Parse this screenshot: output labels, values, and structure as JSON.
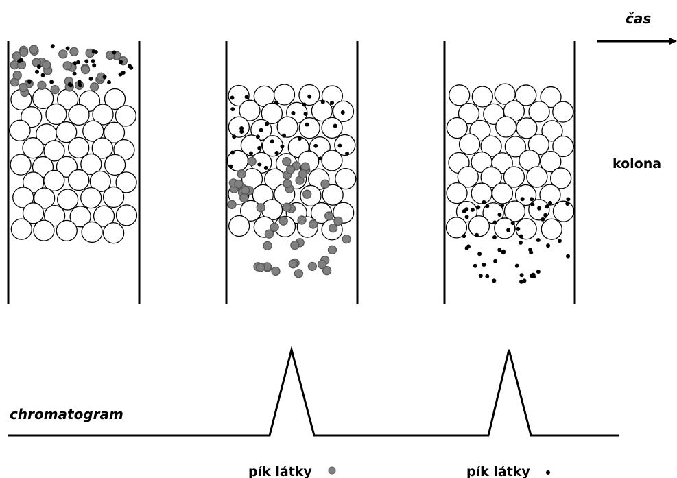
{
  "labels": {
    "time": "čas",
    "column": "kolona",
    "chromatogram": "chromatogram",
    "peak_gray": "pík látky",
    "peak_black": "pík látky"
  },
  "colors": {
    "stroke": "#000000",
    "background": "#ffffff",
    "gray_substance": "#808080",
    "black_substance": "#000000"
  },
  "column_stages": [
    {
      "name": "column-start",
      "gray_substance_zone": "top",
      "black_substance_zone": "top"
    },
    {
      "name": "column-middle",
      "gray_substance_zone": "bottom-eluting",
      "black_substance_zone": "middle"
    },
    {
      "name": "column-end",
      "gray_substance_zone": "eluted",
      "black_substance_zone": "bottom-eluting"
    }
  ]
}
